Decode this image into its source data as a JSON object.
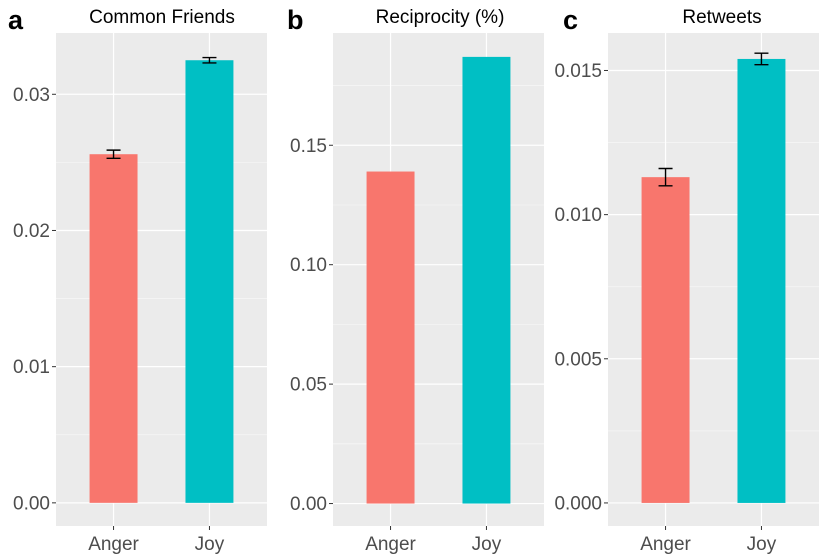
{
  "colors": {
    "anger": "#F8766D",
    "joy": "#00BFC4",
    "panel_bg": "#EBEBEB"
  },
  "chart_data": [
    {
      "type": "bar",
      "letter": "a",
      "title": "Common Friends",
      "categories": [
        "Anger",
        "Joy"
      ],
      "values": [
        0.0256,
        0.0325
      ],
      "errors": [
        0.0003,
        0.0002
      ],
      "ylim": [
        -0.0017,
        0.0345
      ],
      "yticks": [
        0.0,
        0.01,
        0.02,
        0.03
      ],
      "ytick_labels": [
        "0.00",
        "0.01",
        "0.02",
        "0.03"
      ],
      "xlabel": "",
      "ylabel": ""
    },
    {
      "type": "bar",
      "letter": "b",
      "title": "Reciprocity (%)",
      "categories": [
        "Anger",
        "Joy"
      ],
      "values": [
        0.139,
        0.187
      ],
      "errors": [
        0,
        0
      ],
      "ylim": [
        -0.0094,
        0.197
      ],
      "yticks": [
        0.0,
        0.05,
        0.1,
        0.15
      ],
      "ytick_labels": [
        "0.00",
        "0.05",
        "0.10",
        "0.15"
      ],
      "xlabel": "",
      "ylabel": ""
    },
    {
      "type": "bar",
      "letter": "c",
      "title": "Retweets",
      "categories": [
        "Anger",
        "Joy"
      ],
      "values": [
        0.0113,
        0.0154
      ],
      "errors": [
        0.0003,
        0.0002
      ],
      "ylim": [
        -0.0008,
        0.0163
      ],
      "yticks": [
        0.0,
        0.005,
        0.01,
        0.015
      ],
      "ytick_labels": [
        "0.000",
        "0.005",
        "0.010",
        "0.015"
      ],
      "xlabel": "",
      "ylabel": ""
    }
  ]
}
